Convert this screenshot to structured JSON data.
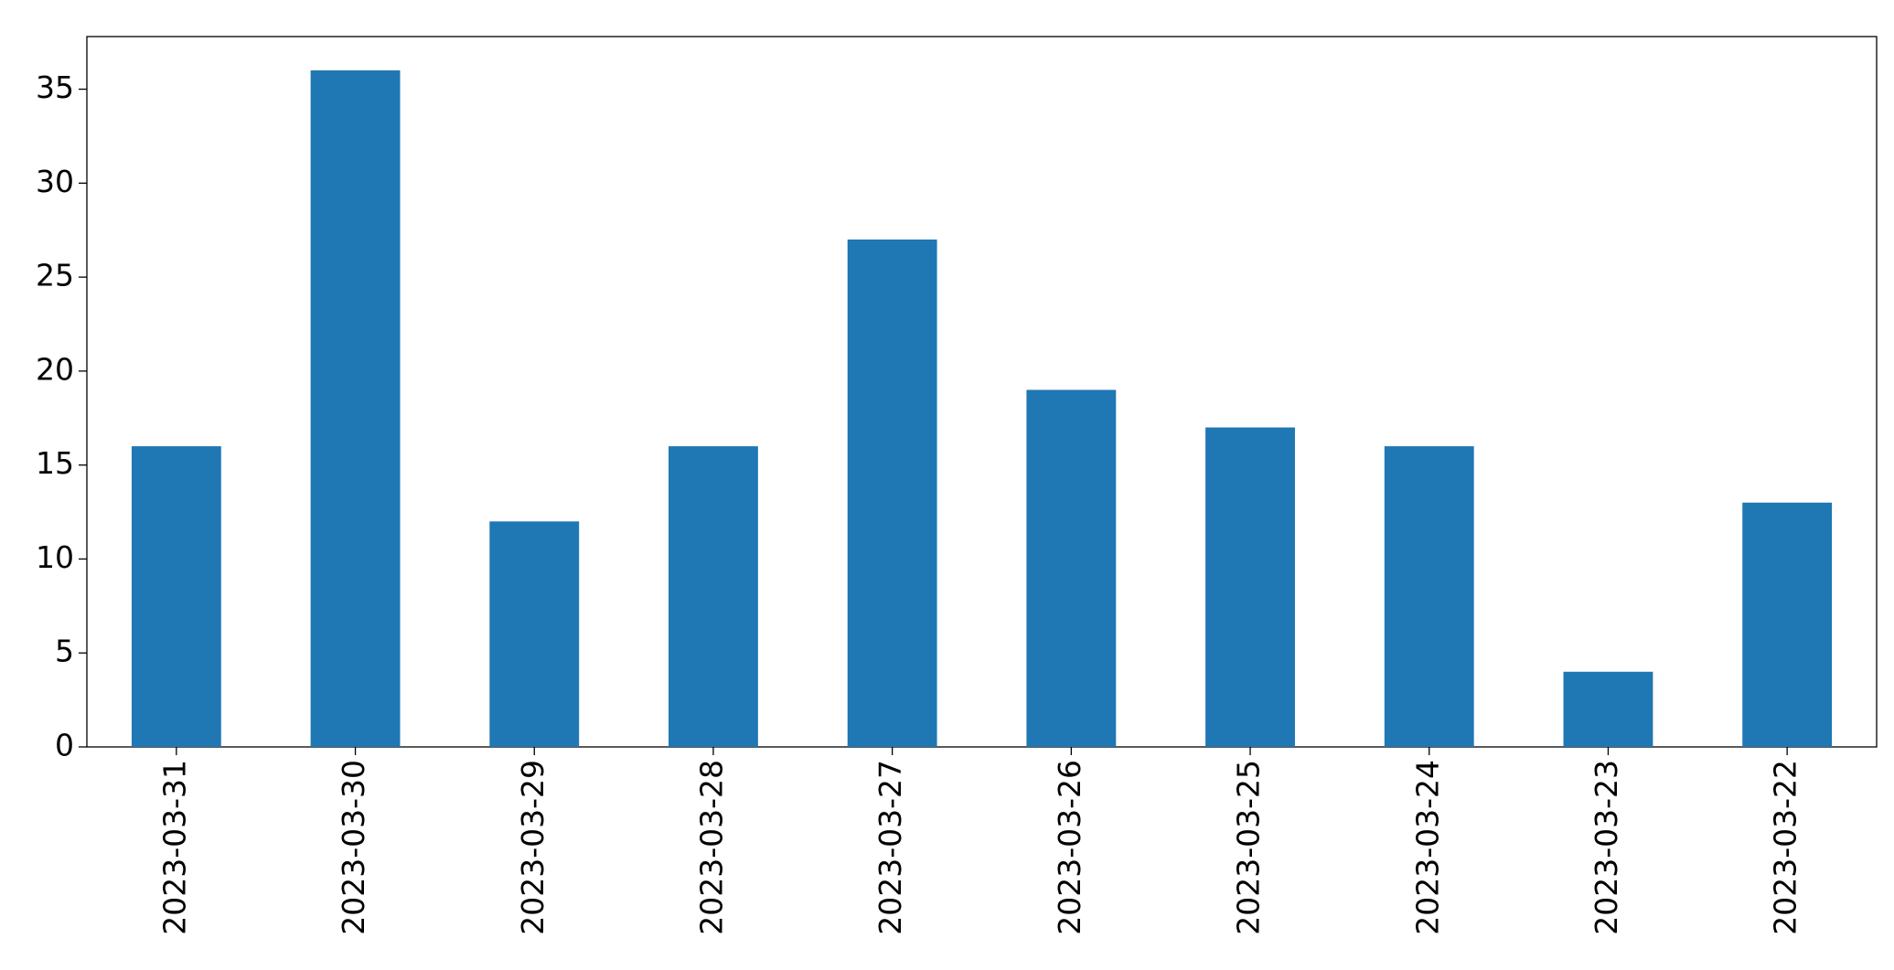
{
  "chart_data": {
    "type": "bar",
    "categories": [
      "2023-03-31",
      "2023-03-30",
      "2023-03-29",
      "2023-03-28",
      "2023-03-27",
      "2023-03-26",
      "2023-03-25",
      "2023-03-24",
      "2023-03-23",
      "2023-03-22"
    ],
    "values": [
      16,
      36,
      12,
      16,
      27,
      19,
      17,
      16,
      4,
      13
    ],
    "color": "#1f77b4",
    "ylim": [
      0,
      37.8
    ],
    "yticks": [
      0,
      5,
      10,
      15,
      20,
      25,
      30,
      35
    ],
    "grid": false
  }
}
